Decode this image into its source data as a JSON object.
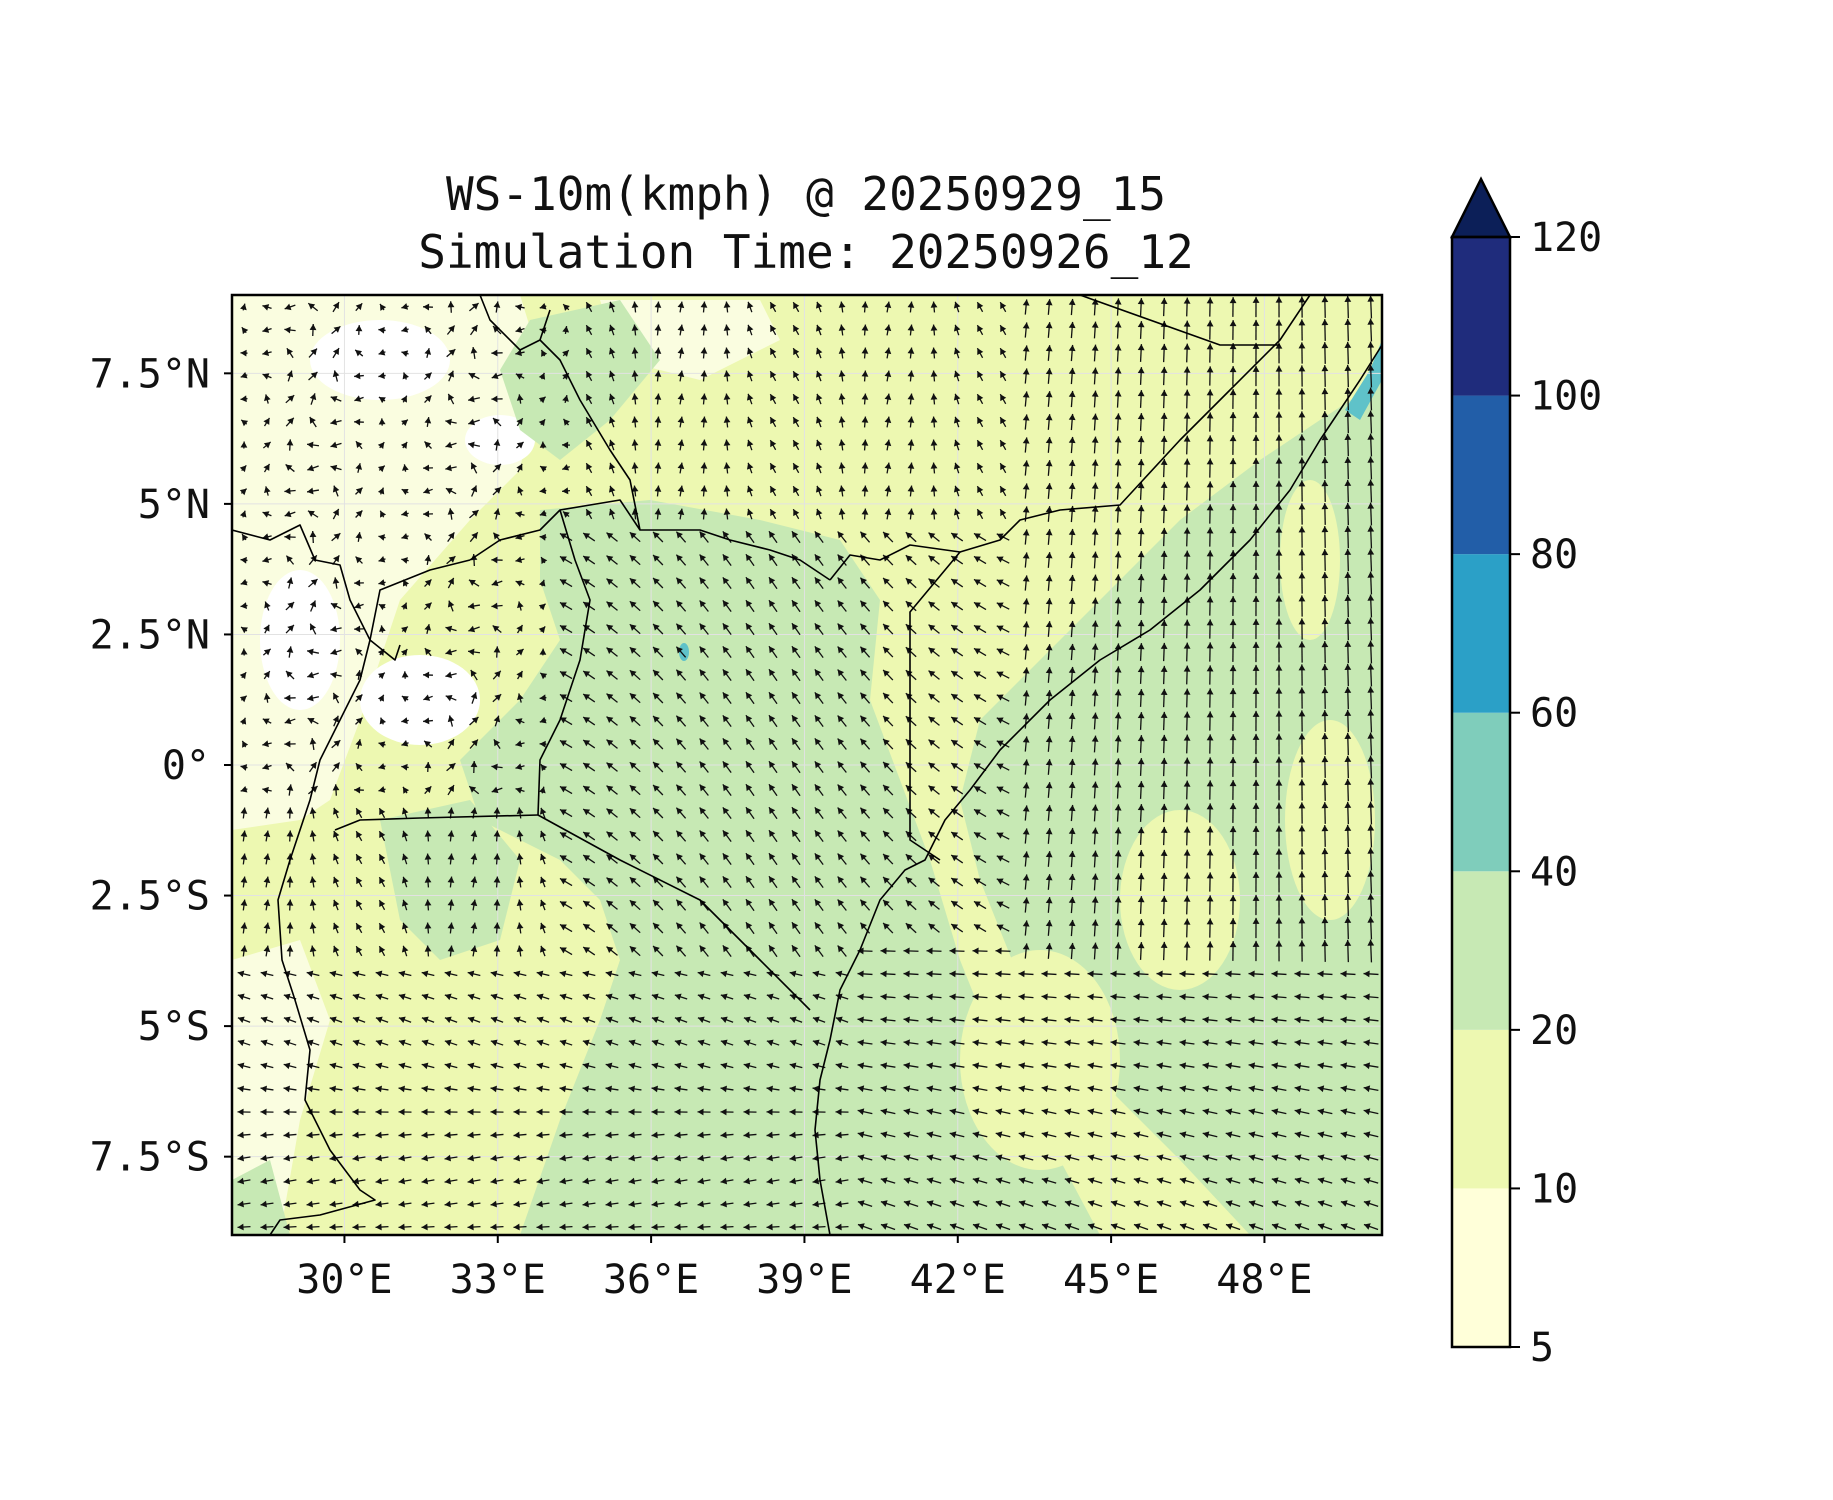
{
  "title": {
    "line1": "WS-10m(kmph) @ 20250929_15",
    "line2": "Simulation Time: 20250926_12"
  },
  "map": {
    "lon_range": [
      27.8,
      50.3
    ],
    "lat_range": [
      -9.0,
      9.0
    ],
    "lon_ticks": [
      {
        "value": 30,
        "label": "30°E"
      },
      {
        "value": 33,
        "label": "33°E"
      },
      {
        "value": 36,
        "label": "36°E"
      },
      {
        "value": 39,
        "label": "39°E"
      },
      {
        "value": 42,
        "label": "42°E"
      },
      {
        "value": 45,
        "label": "45°E"
      },
      {
        "value": 48,
        "label": "48°E"
      }
    ],
    "lat_ticks": [
      {
        "value": 7.5,
        "label": "7.5°N"
      },
      {
        "value": 5,
        "label": "5°N"
      },
      {
        "value": 2.5,
        "label": "2.5°N"
      },
      {
        "value": 0,
        "label": "0°"
      },
      {
        "value": -2.5,
        "label": "2.5°S"
      },
      {
        "value": -5,
        "label": "5°S"
      },
      {
        "value": -7.5,
        "label": "7.5°S"
      }
    ],
    "gridlines": true
  },
  "colorbar": {
    "levels": [
      5,
      10,
      20,
      40,
      60,
      80,
      100,
      120
    ],
    "labels": [
      "5",
      "10",
      "20",
      "40",
      "60",
      "80",
      "100",
      "120"
    ],
    "colors": [
      "#ffffd9",
      "#edf8b1",
      "#c7e9b4",
      "#7fcdbb",
      "#2ba0c7",
      "#225ea8",
      "#1f2c7c"
    ],
    "extend_color": "#0c1f58",
    "extend": "max"
  },
  "colors": {
    "border": "#000000",
    "arrow": "#111111",
    "high_wind_spot": "#5fc2c9"
  }
}
